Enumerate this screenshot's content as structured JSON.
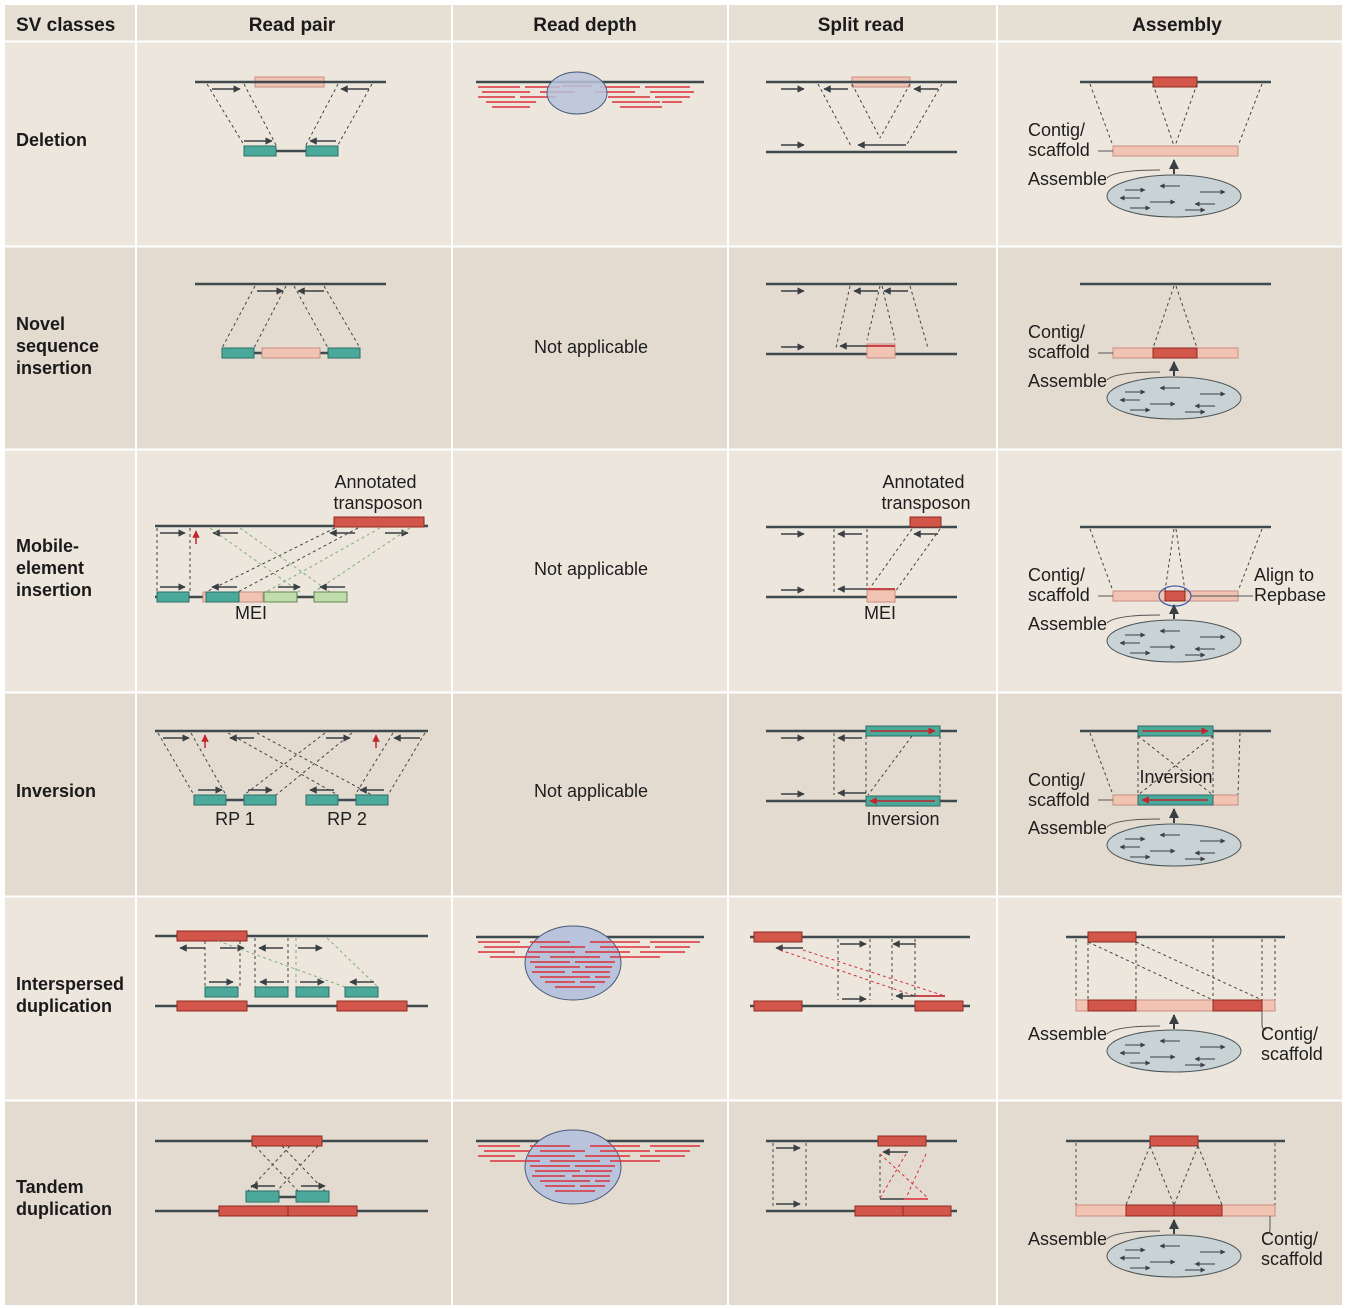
{
  "columns": [
    "SV classes",
    "Read pair",
    "Read depth",
    "Split read",
    "Assembly"
  ],
  "rows": [
    {
      "label": [
        "Deletion"
      ]
    },
    {
      "label": [
        "Novel",
        "sequence",
        "insertion"
      ]
    },
    {
      "label": [
        "Mobile-",
        "element",
        "insertion"
      ]
    },
    {
      "label": [
        "Inversion"
      ]
    },
    {
      "label": [
        "Interspersed",
        "duplication"
      ]
    },
    {
      "label": [
        "Tandem",
        "duplication"
      ]
    }
  ],
  "not_applicable": "Not applicable",
  "labels": {
    "contig1": "Contig/",
    "contig2": "scaffold",
    "assemble": "Assemble",
    "annotated1": "Annotated",
    "annotated2": "transposon",
    "mei": "MEI",
    "align1": "Align to",
    "align2": "Repbase",
    "inversion": "Inversion",
    "rp1": "RP 1",
    "rp2": "RP 2"
  },
  "colors": {
    "cell_light": "#ece6dc",
    "cell_dark": "#e3dbcf",
    "header_bg": "#e6dfd4",
    "chromosome": "#3f4a4f",
    "read_teal": "#4aa99a",
    "read_light_green": "#bfdcaa",
    "segment_red": "#d2564a",
    "segment_pink": "#f0c3b3",
    "depth_oval": "#b9c3dc",
    "assembly_oval": "#c9d3d6",
    "read_red": "#d9303a",
    "mobile_arrow": "#c0272d"
  }
}
